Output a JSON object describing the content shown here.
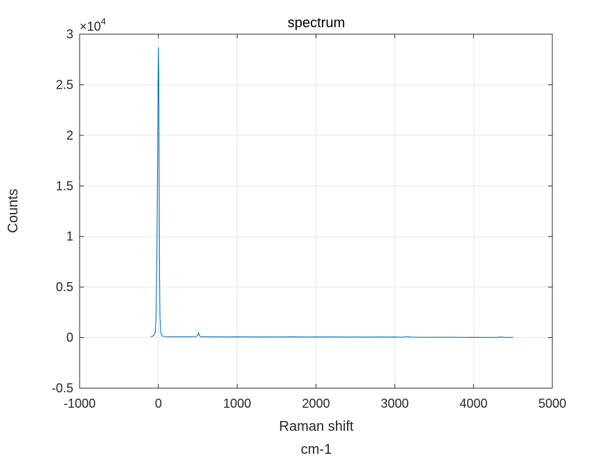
{
  "chart_data": {
    "type": "line",
    "title": "spectrum",
    "xlabel": "Raman shift",
    "xlabel_line2": "cm-1",
    "ylabel": "Counts",
    "y_exponent_base": "×10",
    "y_exponent_power": "4",
    "xlim": [
      -1000,
      5000
    ],
    "ylim": [
      -0.5,
      3
    ],
    "x_ticks": [
      -1000,
      0,
      1000,
      2000,
      3000,
      4000,
      5000
    ],
    "x_tick_labels": [
      "-1000",
      "0",
      "1000",
      "2000",
      "3000",
      "4000",
      "5000"
    ],
    "y_ticks": [
      -0.5,
      0,
      0.5,
      1,
      1.5,
      2,
      2.5,
      3
    ],
    "y_tick_labels": [
      "-0.5",
      "0",
      "0.5",
      "1",
      "1.5",
      "2",
      "2.5",
      "3"
    ],
    "grid": true,
    "series": [
      {
        "color": "#0072BD",
        "x": [
          -100,
          -80,
          -60,
          -40,
          -30,
          -20,
          -10,
          -5,
          0,
          5,
          10,
          15,
          20,
          30,
          50,
          80,
          120,
          200,
          300,
          400,
          480,
          500,
          510,
          520,
          540,
          600,
          700,
          800,
          900,
          1000,
          1100,
          1200,
          1300,
          1400,
          1500,
          1600,
          1700,
          1800,
          1900,
          2000,
          2100,
          2200,
          2300,
          2400,
          2500,
          2600,
          2700,
          2800,
          2900,
          3000,
          3100,
          3150,
          3200,
          3300,
          3400,
          3500,
          3600,
          3700,
          3800,
          3900,
          4000,
          4100,
          4200,
          4300,
          4350,
          4400,
          4500
        ],
        "y": [
          0.01,
          0.012,
          0.02,
          0.05,
          0.2,
          0.8,
          1.8,
          2.5,
          2.87,
          2.5,
          1.5,
          0.6,
          0.2,
          0.05,
          0.015,
          0.01,
          0.009,
          0.009,
          0.008,
          0.008,
          0.01,
          0.025,
          0.045,
          0.02,
          0.009,
          0.008,
          0.008,
          0.007,
          0.007,
          0.008,
          0.007,
          0.007,
          0.006,
          0.007,
          0.006,
          0.007,
          0.008,
          0.006,
          0.006,
          0.007,
          0.006,
          0.007,
          0.006,
          0.005,
          0.006,
          0.005,
          0.005,
          0.006,
          0.005,
          0.006,
          0.004,
          0.01,
          0.005,
          0.004,
          0.003,
          0.004,
          0.003,
          0.004,
          0.003,
          0.002,
          0.003,
          0.002,
          0.002,
          0.003,
          0.006,
          0.002,
          0.002
        ]
      }
    ]
  }
}
